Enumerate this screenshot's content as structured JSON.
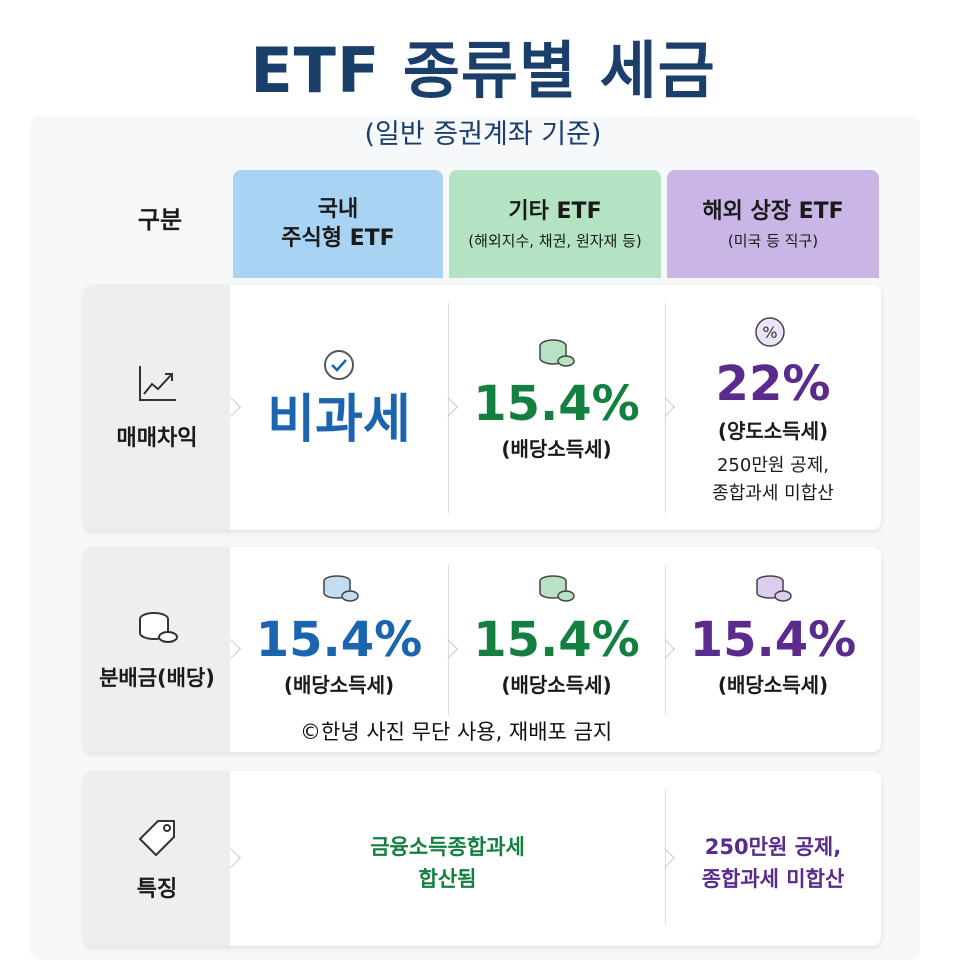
{
  "title": "ETF 종류별 세금",
  "subtitle": "(일반 증권계좌 기준)",
  "header": {
    "category_label": "구분",
    "columns": [
      {
        "line1": "국내",
        "line2": "주식형 ETF",
        "sub": ""
      },
      {
        "line1": "기타 ETF",
        "line2": "",
        "sub": "(해외지수, 채권, 원자재 등)"
      },
      {
        "line1": "해외 상장 ETF",
        "line2": "",
        "sub": "(미국 등 직구)"
      }
    ]
  },
  "rows": {
    "trading": {
      "label": "매매차익",
      "icon": "chart-up-icon",
      "domestic": {
        "value": "비과세"
      },
      "other": {
        "value": "15.4%",
        "note": "(배당소득세)"
      },
      "overseas": {
        "value": "22%",
        "note": "(양도소득세)",
        "detail1": "250만원 공제,",
        "detail2": "종합과세 미합산"
      }
    },
    "dividend": {
      "label": "분배금(배당)",
      "icon": "coins-icon",
      "domestic": {
        "value": "15.4%",
        "note": "(배당소득세)"
      },
      "other": {
        "value": "15.4%",
        "note": "(배당소득세)"
      },
      "overseas": {
        "value": "15.4%",
        "note": "(배당소득세)"
      }
    },
    "features": {
      "label": "특징",
      "icon": "tag-icon",
      "domestic_other": {
        "line1": "금융소득종합과세",
        "line2": "합산됨"
      },
      "overseas": {
        "line1": "250만원 공제,",
        "line2": "종합과세 미합산"
      }
    }
  },
  "watermark": "©한녕 사진 무단 사용, 재배포 금지",
  "colors": {
    "title": "#1b3f6b",
    "domestic": "#1b65b0",
    "other": "#13803f",
    "overseas": "#5a2a8c",
    "header_domestic": "#a9d3f2",
    "header_other": "#b4e3c3",
    "header_overseas": "#c9b5e6"
  }
}
